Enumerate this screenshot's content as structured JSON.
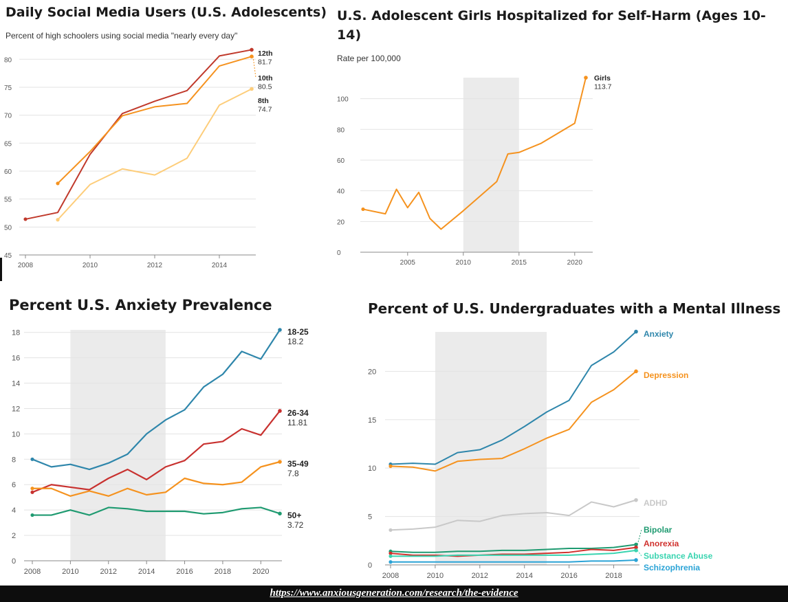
{
  "colors": {
    "grade12": "#c0392b",
    "grade10": "#f5921e",
    "grade8": "#fdcd7a",
    "girls": "#f5921e",
    "shade": "#ebebeb",
    "age18_25": "#2e86ab",
    "age26_34": "#c8312f",
    "age35_49": "#f5921e",
    "age50": "#1e9a70",
    "anxiety": "#2e86ab",
    "depression": "#f5921e",
    "adhd": "#c8c8c8",
    "bipolar": "#1e9a70",
    "anorexia": "#d0312d",
    "substance": "#39d4b0",
    "schizophrenia": "#2aa3d6"
  },
  "footer": {
    "link_text": "https://www.anxiousgeneration.com/research/the-evidence"
  },
  "chart_data": [
    {
      "type": "line",
      "title": "Daily Social Media Users (U.S. Adolescents)",
      "subtitle": "Percent of high schoolers using social media \"nearly every day\"",
      "xlim": [
        2008,
        2015
      ],
      "ylim": [
        45,
        82
      ],
      "xticks": [
        2008,
        2010,
        2012,
        2014
      ],
      "yticks": [
        45,
        50,
        55,
        60,
        65,
        70,
        75,
        80
      ],
      "series": [
        {
          "name": "12th",
          "end_label": "81.7",
          "x": [
            2008,
            2009,
            2010,
            2011,
            2012,
            2013,
            2014,
            2015
          ],
          "values": [
            51.4,
            52.6,
            63.0,
            70.3,
            72.5,
            74.4,
            80.6,
            81.7
          ]
        },
        {
          "name": "10th",
          "end_label": "80.5",
          "x": [
            2009,
            2010,
            2011,
            2012,
            2013,
            2014,
            2015
          ],
          "values": [
            57.8,
            63.5,
            69.9,
            71.5,
            72.1,
            78.8,
            80.5
          ]
        },
        {
          "name": "8th",
          "end_label": "74.7",
          "x": [
            2009,
            2010,
            2011,
            2012,
            2013,
            2014,
            2015
          ],
          "values": [
            51.3,
            57.6,
            60.4,
            59.3,
            62.3,
            71.8,
            74.7
          ]
        }
      ]
    },
    {
      "type": "line",
      "title": "U.S. Adolescent Girls Hospitalized for Self-Harm (Ages 10-14)",
      "subtitle": "Rate per 100,000",
      "xlim": [
        2001,
        2021
      ],
      "ylim": [
        0,
        113.7
      ],
      "xticks": [
        2005,
        2010,
        2015,
        2020
      ],
      "yticks": [
        0,
        20,
        40,
        60,
        80,
        100
      ],
      "shaded_range": [
        2010,
        2015
      ],
      "series": [
        {
          "name": "Girls",
          "end_label": "113.7",
          "x": [
            2001,
            2003,
            2004,
            2005,
            2006,
            2007,
            2008,
            2010,
            2013,
            2014,
            2015,
            2017,
            2020,
            2021
          ],
          "values": [
            28,
            25,
            41,
            29,
            39,
            22,
            15,
            27,
            46,
            64,
            65,
            71,
            84,
            113.7
          ]
        }
      ]
    },
    {
      "type": "line",
      "title": "Percent U.S. Anxiety Prevalence",
      "xlim": [
        2008,
        2021
      ],
      "ylim": [
        0,
        18.2
      ],
      "xticks": [
        2008,
        2010,
        2012,
        2014,
        2016,
        2018,
        2020
      ],
      "yticks": [
        0,
        2,
        4,
        6,
        8,
        10,
        12,
        14,
        16,
        18
      ],
      "shaded_range": [
        2010,
        2015
      ],
      "series": [
        {
          "name": "18-25",
          "end_label": "18.2",
          "x": [
            2008,
            2009,
            2010,
            2011,
            2012,
            2013,
            2014,
            2015,
            2016,
            2017,
            2018,
            2019,
            2020,
            2021
          ],
          "values": [
            8.0,
            7.4,
            7.6,
            7.2,
            7.7,
            8.4,
            10.0,
            11.1,
            11.9,
            13.7,
            14.7,
            16.5,
            15.9,
            18.2
          ]
        },
        {
          "name": "26-34",
          "end_label": "11.81",
          "x": [
            2008,
            2009,
            2010,
            2011,
            2012,
            2013,
            2014,
            2015,
            2016,
            2017,
            2018,
            2019,
            2020,
            2021
          ],
          "values": [
            5.4,
            6.0,
            5.8,
            5.6,
            6.5,
            7.2,
            6.4,
            7.4,
            7.9,
            9.2,
            9.4,
            10.4,
            9.9,
            11.81
          ]
        },
        {
          "name": "35-49",
          "end_label": "7.8",
          "x": [
            2008,
            2009,
            2010,
            2011,
            2012,
            2013,
            2014,
            2015,
            2016,
            2017,
            2018,
            2019,
            2020,
            2021
          ],
          "values": [
            5.7,
            5.7,
            5.1,
            5.5,
            5.1,
            5.7,
            5.2,
            5.4,
            6.5,
            6.1,
            6.0,
            6.2,
            7.4,
            7.8
          ]
        },
        {
          "name": "50+",
          "end_label": "3.72",
          "x": [
            2008,
            2009,
            2010,
            2011,
            2012,
            2013,
            2014,
            2015,
            2016,
            2017,
            2018,
            2019,
            2020,
            2021
          ],
          "values": [
            3.6,
            3.6,
            4.0,
            3.6,
            4.2,
            4.1,
            3.9,
            3.9,
            3.9,
            3.7,
            3.8,
            4.1,
            4.2,
            3.72
          ]
        }
      ]
    },
    {
      "type": "line",
      "title": "Percent of U.S. Undergraduates with a Mental Illness",
      "xlim": [
        2008,
        2019
      ],
      "ylim": [
        0,
        24
      ],
      "xticks": [
        2008,
        2010,
        2012,
        2014,
        2016,
        2018
      ],
      "yticks": [
        0,
        5,
        10,
        15,
        20
      ],
      "shaded_range": [
        2010,
        2015
      ],
      "series": [
        {
          "name": "Anxiety",
          "x": [
            2008,
            2009,
            2010,
            2011,
            2012,
            2013,
            2014,
            2015,
            2016,
            2017,
            2018,
            2019
          ],
          "values": [
            10.4,
            10.5,
            10.4,
            11.6,
            11.9,
            12.9,
            14.3,
            15.8,
            17.0,
            20.6,
            22.0,
            24.1
          ]
        },
        {
          "name": "Depression",
          "x": [
            2008,
            2009,
            2010,
            2011,
            2012,
            2013,
            2014,
            2015,
            2016,
            2017,
            2018,
            2019
          ],
          "values": [
            10.2,
            10.1,
            9.7,
            10.7,
            10.9,
            11.0,
            12.0,
            13.1,
            14.0,
            16.8,
            18.1,
            20.0
          ]
        },
        {
          "name": "ADHD",
          "x": [
            2008,
            2009,
            2010,
            2011,
            2012,
            2013,
            2014,
            2015,
            2016,
            2017,
            2018,
            2019
          ],
          "values": [
            3.6,
            3.7,
            3.9,
            4.6,
            4.5,
            5.1,
            5.3,
            5.4,
            5.1,
            6.5,
            6.0,
            6.7
          ]
        },
        {
          "name": "Bipolar",
          "x": [
            2008,
            2009,
            2010,
            2011,
            2012,
            2013,
            2014,
            2015,
            2016,
            2017,
            2018,
            2019
          ],
          "values": [
            1.4,
            1.3,
            1.3,
            1.4,
            1.4,
            1.5,
            1.5,
            1.6,
            1.7,
            1.7,
            1.8,
            2.1
          ]
        },
        {
          "name": "Anorexia",
          "x": [
            2008,
            2009,
            2010,
            2011,
            2012,
            2013,
            2014,
            2015,
            2016,
            2017,
            2018,
            2019
          ],
          "values": [
            1.2,
            1.0,
            1.0,
            0.9,
            1.0,
            1.1,
            1.1,
            1.2,
            1.3,
            1.6,
            1.5,
            1.8
          ]
        },
        {
          "name": "Substance Abuse",
          "x": [
            2008,
            2009,
            2010,
            2011,
            2012,
            2013,
            2014,
            2015,
            2016,
            2017,
            2018,
            2019
          ],
          "values": [
            0.9,
            0.9,
            0.9,
            1.0,
            1.0,
            1.0,
            1.0,
            1.0,
            1.0,
            1.1,
            1.2,
            1.5
          ]
        },
        {
          "name": "Schizophrenia",
          "x": [
            2008,
            2009,
            2010,
            2011,
            2012,
            2013,
            2014,
            2015,
            2016,
            2017,
            2018,
            2019
          ],
          "values": [
            0.3,
            0.3,
            0.3,
            0.3,
            0.3,
            0.3,
            0.3,
            0.3,
            0.3,
            0.4,
            0.4,
            0.5
          ]
        }
      ]
    }
  ]
}
